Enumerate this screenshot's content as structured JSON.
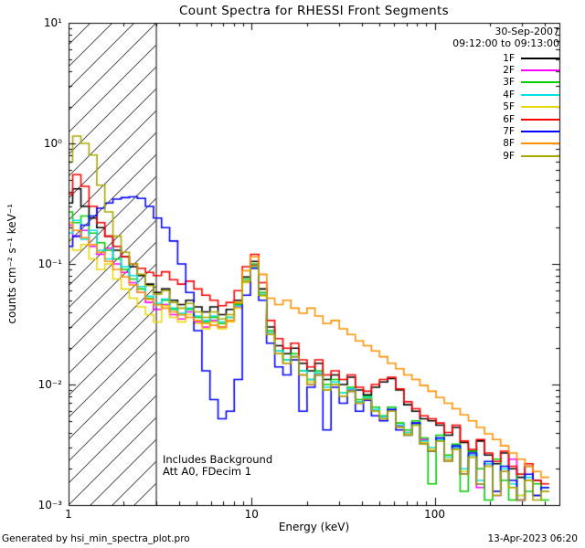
{
  "title": "Count Spectra for RHESSI Front Segments",
  "header": {
    "date": "30-Sep-2007",
    "time_range": "09:12:00 to 09:13:00"
  },
  "annotations": {
    "background": "Includes Background",
    "attenuator": "Att A0, FDecim 1"
  },
  "axes": {
    "xlabel": "Energy (keV)",
    "ylabel": "counts cm⁻² s⁻¹ keV⁻¹"
  },
  "footer": {
    "left": "Generated by hsi_min_spectra_plot.pro",
    "right": "13-Apr-2023 06:20"
  },
  "chart_data": {
    "type": "line",
    "title": "Count Spectra for RHESSI Front Segments",
    "xlabel": "Energy (keV)",
    "ylabel": "counts cm^-2 s^-1 keV^-1",
    "xscale": "log",
    "yscale": "log",
    "xlim": [
      1,
      480
    ],
    "ylim": [
      0.001,
      10
    ],
    "legend_position": "upper right",
    "hatch_region": {
      "xmin": 1,
      "xmax": 3
    },
    "x_ticks": [
      {
        "v": 1,
        "label": "1"
      },
      {
        "v": 10,
        "label": "10"
      },
      {
        "v": 100,
        "label": "100"
      }
    ],
    "y_ticks": [
      {
        "v": 10,
        "label": "10¹"
      },
      {
        "v": 1,
        "label": "10⁰"
      },
      {
        "v": 0.1,
        "label": "10⁻¹"
      },
      {
        "v": 0.01,
        "label": "10⁻²"
      },
      {
        "v": 0.001,
        "label": "10⁻³"
      }
    ],
    "energies": [
      1.0,
      1.11,
      1.23,
      1.36,
      1.5,
      1.66,
      1.84,
      2.04,
      2.26,
      2.5,
      2.77,
      3.06,
      3.39,
      3.75,
      4.15,
      4.6,
      5.09,
      5.63,
      6.23,
      6.9,
      7.64,
      8.45,
      9.36,
      10.4,
      11.5,
      12.7,
      14.1,
      15.6,
      17.2,
      19.1,
      21.1,
      23.3,
      25.8,
      28.6,
      31.7,
      35.0,
      38.8,
      42.9,
      47.5,
      52.6,
      58.2,
      64.5,
      71.4,
      79.0,
      87.4,
      96.8,
      107,
      119,
      131,
      145,
      161,
      178,
      197,
      218,
      241,
      267,
      296,
      327,
      362,
      401
    ],
    "series": [
      {
        "name": "1F",
        "color": "#000000",
        "values": [
          0.32,
          0.42,
          0.3,
          0.24,
          0.2,
          0.17,
          0.13,
          0.115,
          0.095,
          0.08,
          0.068,
          0.058,
          0.062,
          0.05,
          0.046,
          0.05,
          0.044,
          0.04,
          0.044,
          0.038,
          0.042,
          0.05,
          0.078,
          0.105,
          0.062,
          0.03,
          0.021,
          0.018,
          0.02,
          0.015,
          0.013,
          0.015,
          0.011,
          0.012,
          0.01,
          0.0115,
          0.009,
          0.0082,
          0.0095,
          0.0105,
          0.0112,
          0.009,
          0.0068,
          0.006,
          0.0052,
          0.005,
          0.0046,
          0.0038,
          0.0044,
          0.0033,
          0.0028,
          0.0034,
          0.0026,
          0.0022,
          0.0027,
          0.002,
          0.0017,
          0.0021,
          0.0016,
          0.0014
        ]
      },
      {
        "name": "2F",
        "color": "#ff00ff",
        "values": [
          0.21,
          0.17,
          0.19,
          0.14,
          0.12,
          0.135,
          0.1,
          0.085,
          0.07,
          0.058,
          0.048,
          0.042,
          0.046,
          0.038,
          0.035,
          0.04,
          0.033,
          0.03,
          0.034,
          0.03,
          0.034,
          0.044,
          0.072,
          0.098,
          0.055,
          0.026,
          0.018,
          0.015,
          0.017,
          0.012,
          0.01,
          0.012,
          0.009,
          0.01,
          0.008,
          0.009,
          0.007,
          0.0075,
          0.006,
          0.0052,
          0.006,
          0.0045,
          0.004,
          0.0048,
          0.0035,
          0.0028,
          0.0036,
          0.0024,
          0.003,
          0.0018,
          0.0026,
          0.0014,
          0.0022,
          0.0012,
          0.0019,
          0.0024,
          0.0011,
          0.0016,
          0.0012,
          0.0013
        ]
      },
      {
        "name": "3F",
        "color": "#00cc00",
        "values": [
          0.27,
          0.22,
          0.25,
          0.18,
          0.15,
          0.13,
          0.11,
          0.09,
          0.075,
          0.062,
          0.052,
          0.046,
          0.05,
          0.042,
          0.038,
          0.042,
          0.036,
          0.033,
          0.036,
          0.032,
          0.036,
          0.046,
          0.075,
          0.1,
          0.058,
          0.028,
          0.019,
          0.016,
          0.018,
          0.013,
          0.011,
          0.013,
          0.01,
          0.011,
          0.0085,
          0.0095,
          0.0075,
          0.008,
          0.0065,
          0.0055,
          0.0065,
          0.0048,
          0.0042,
          0.005,
          0.0036,
          0.0015,
          0.0038,
          0.0026,
          0.0032,
          0.0013,
          0.0028,
          0.002,
          0.0011,
          0.0024,
          0.0016,
          0.0011,
          0.0018,
          0.0013,
          0.0015,
          0.0011
        ]
      },
      {
        "name": "4F",
        "color": "#00e0e0",
        "values": [
          0.18,
          0.23,
          0.16,
          0.19,
          0.13,
          0.11,
          0.14,
          0.095,
          0.08,
          0.065,
          0.054,
          0.047,
          0.051,
          0.043,
          0.039,
          0.043,
          0.037,
          0.034,
          0.037,
          0.033,
          0.036,
          0.045,
          0.072,
          0.095,
          0.056,
          0.027,
          0.019,
          0.016,
          0.017,
          0.013,
          0.011,
          0.0125,
          0.0095,
          0.0105,
          0.0085,
          0.0092,
          0.0072,
          0.0078,
          0.0062,
          0.0054,
          0.0062,
          0.0046,
          0.004,
          0.0047,
          0.0034,
          0.003,
          0.0035,
          0.0025,
          0.003,
          0.002,
          0.0026,
          0.0016,
          0.0022,
          0.0013,
          0.002,
          0.0015,
          0.0012,
          0.0017,
          0.0012,
          0.0014
        ]
      },
      {
        "name": "5F",
        "color": "#e8d800",
        "values": [
          0.16,
          0.13,
          0.145,
          0.11,
          0.09,
          0.1,
          0.075,
          0.062,
          0.052,
          0.044,
          0.038,
          0.033,
          0.045,
          0.036,
          0.033,
          0.038,
          0.032,
          0.029,
          0.033,
          0.029,
          0.033,
          0.043,
          0.07,
          0.092,
          0.054,
          0.026,
          0.018,
          0.015,
          0.016,
          0.012,
          0.0105,
          0.012,
          0.009,
          0.01,
          0.008,
          0.0088,
          0.007,
          0.0075,
          0.006,
          0.0052,
          0.006,
          0.0044,
          0.0039,
          0.0046,
          0.0033,
          0.0029,
          0.0034,
          0.0024,
          0.0029,
          0.0019,
          0.0025,
          0.0015,
          0.0021,
          0.0013,
          0.0019,
          0.0014,
          0.0012,
          0.0016,
          0.0012,
          0.0013
        ]
      },
      {
        "name": "6F",
        "color": "#ff0000",
        "values": [
          0.38,
          0.55,
          0.44,
          0.3,
          0.22,
          0.17,
          0.14,
          0.115,
          0.1,
          0.092,
          0.085,
          0.08,
          0.086,
          0.074,
          0.068,
          0.072,
          0.062,
          0.055,
          0.05,
          0.045,
          0.048,
          0.06,
          0.095,
          0.12,
          0.07,
          0.034,
          0.024,
          0.02,
          0.022,
          0.016,
          0.014,
          0.016,
          0.012,
          0.013,
          0.011,
          0.012,
          0.0095,
          0.0088,
          0.01,
          0.011,
          0.0115,
          0.0092,
          0.0072,
          0.0063,
          0.0055,
          0.0052,
          0.0048,
          0.004,
          0.0046,
          0.0034,
          0.0029,
          0.0035,
          0.0027,
          0.0023,
          0.0028,
          0.0021,
          0.0018,
          0.0022,
          0.0016,
          0.0015
        ]
      },
      {
        "name": "7F",
        "color": "#0000ff",
        "values": [
          0.14,
          0.17,
          0.21,
          0.25,
          0.29,
          0.32,
          0.345,
          0.355,
          0.36,
          0.35,
          0.3,
          0.24,
          0.2,
          0.155,
          0.1,
          0.058,
          0.028,
          0.013,
          0.0075,
          0.0052,
          0.006,
          0.011,
          0.055,
          0.092,
          0.05,
          0.022,
          0.014,
          0.012,
          0.016,
          0.006,
          0.0095,
          0.012,
          0.0042,
          0.0095,
          0.007,
          0.0088,
          0.006,
          0.0074,
          0.0055,
          0.005,
          0.0062,
          0.0042,
          0.0038,
          0.0048,
          0.0032,
          0.0028,
          0.0036,
          0.0023,
          0.0031,
          0.0018,
          0.0027,
          0.0015,
          0.0023,
          0.0013,
          0.0021,
          0.0016,
          0.0011,
          0.0018,
          0.0012,
          0.0014
        ]
      },
      {
        "name": "8F",
        "color": "#ff9100",
        "values": [
          0.22,
          0.19,
          0.165,
          0.145,
          0.125,
          0.105,
          0.09,
          0.078,
          0.067,
          0.058,
          0.051,
          0.046,
          0.043,
          0.04,
          0.038,
          0.036,
          0.034,
          0.032,
          0.031,
          0.03,
          0.034,
          0.048,
          0.088,
          0.115,
          0.082,
          0.052,
          0.046,
          0.05,
          0.043,
          0.039,
          0.043,
          0.037,
          0.032,
          0.034,
          0.029,
          0.026,
          0.023,
          0.021,
          0.019,
          0.017,
          0.015,
          0.0135,
          0.012,
          0.011,
          0.0098,
          0.0088,
          0.0078,
          0.007,
          0.0063,
          0.0056,
          0.005,
          0.0044,
          0.0039,
          0.0035,
          0.0031,
          0.0027,
          0.0024,
          0.0021,
          0.0019,
          0.0017
        ]
      },
      {
        "name": "9F",
        "color": "#a8a800",
        "values": [
          0.7,
          1.15,
          1.0,
          0.8,
          0.45,
          0.27,
          0.17,
          0.125,
          0.1,
          0.082,
          0.066,
          0.056,
          0.06,
          0.048,
          0.043,
          0.047,
          0.04,
          0.036,
          0.04,
          0.035,
          0.038,
          0.047,
          0.072,
          0.096,
          0.055,
          0.026,
          0.018,
          0.015,
          0.017,
          0.012,
          0.01,
          0.012,
          0.009,
          0.01,
          0.008,
          0.0088,
          0.007,
          0.0076,
          0.006,
          0.0052,
          0.006,
          0.0044,
          0.0038,
          0.0046,
          0.0032,
          0.0028,
          0.0034,
          0.0023,
          0.0029,
          0.0018,
          0.0025,
          0.0015,
          0.0021,
          0.0012,
          0.0019,
          0.0014,
          0.0011,
          0.0016,
          0.0011,
          0.0013
        ]
      }
    ]
  }
}
